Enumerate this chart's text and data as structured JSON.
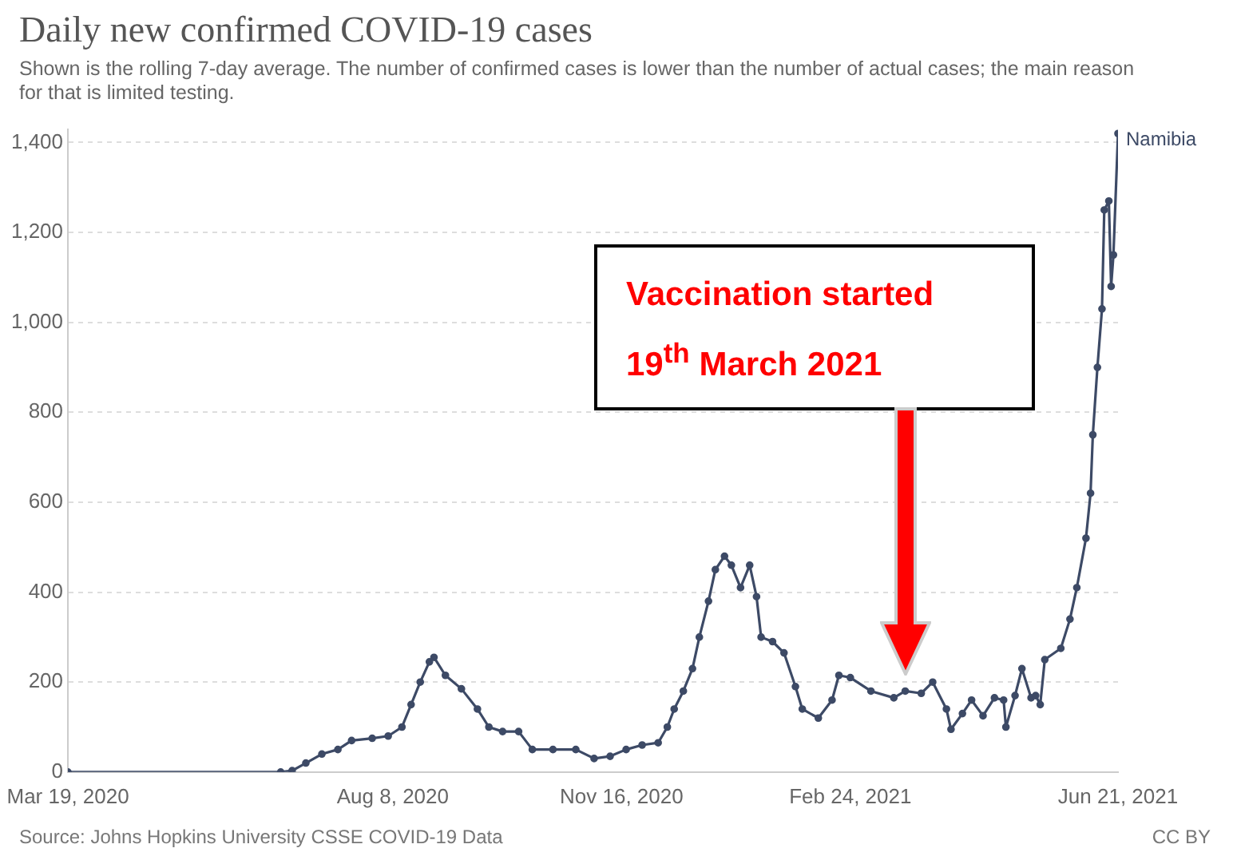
{
  "chart_data": {
    "type": "line",
    "title": "Daily new confirmed COVID-19 cases",
    "subtitle": "Shown is the rolling 7-day average. The number of confirmed cases is lower than the number of actual cases; the main reason for that is limited testing.",
    "annotations": [
      "Source: Johns Hopkins University CSSE COVID-19 Data",
      "CC BY",
      "Vaccination started 19$^{th}$ March 2021"
    ],
    "series": [
      {
        "name": "Namibia",
        "color": "#3d4a66",
        "x": [
          "2020-03-19",
          "2020-06-20",
          "2020-06-25",
          "2020-07-01",
          "2020-07-08",
          "2020-07-15",
          "2020-07-21",
          "2020-07-30",
          "2020-08-06",
          "2020-08-12",
          "2020-08-16",
          "2020-08-20",
          "2020-08-24",
          "2020-08-26",
          "2020-08-31",
          "2020-09-07",
          "2020-09-14",
          "2020-09-19",
          "2020-09-25",
          "2020-10-02",
          "2020-10-08",
          "2020-10-17",
          "2020-10-27",
          "2020-11-04",
          "2020-11-11",
          "2020-11-18",
          "2020-11-25",
          "2020-12-02",
          "2020-12-06",
          "2020-12-09",
          "2020-12-13",
          "2020-12-17",
          "2020-12-20",
          "2020-12-24",
          "2020-12-27",
          "2020-12-31",
          "2021-01-03",
          "2021-01-07",
          "2021-01-11",
          "2021-01-14",
          "2021-01-16",
          "2021-01-21",
          "2021-01-26",
          "2021-01-31",
          "2021-02-03",
          "2021-02-10",
          "2021-02-16",
          "2021-02-19",
          "2021-02-24",
          "2021-03-05",
          "2021-03-15",
          "2021-03-20",
          "2021-03-27",
          "2021-04-01",
          "2021-04-07",
          "2021-04-09",
          "2021-04-14",
          "2021-04-18",
          "2021-04-23",
          "2021-04-28",
          "2021-05-02",
          "2021-05-03",
          "2021-05-07",
          "2021-05-10",
          "2021-05-14",
          "2021-05-16",
          "2021-05-18",
          "2021-05-20",
          "2021-05-27",
          "2021-05-31",
          "2021-06-03",
          "2021-06-07",
          "2021-06-09",
          "2021-06-10",
          "2021-06-12",
          "2021-06-14",
          "2021-06-15",
          "2021-06-17",
          "2021-06-18",
          "2021-06-19",
          "2021-06-21"
        ],
        "values": [
          0,
          0,
          3,
          20,
          40,
          50,
          70,
          75,
          80,
          100,
          150,
          200,
          245,
          255,
          215,
          185,
          140,
          100,
          90,
          90,
          50,
          50,
          50,
          30,
          35,
          50,
          60,
          65,
          100,
          140,
          180,
          230,
          300,
          380,
          450,
          480,
          460,
          410,
          460,
          390,
          300,
          290,
          265,
          190,
          140,
          120,
          160,
          215,
          210,
          180,
          165,
          180,
          175,
          200,
          140,
          95,
          130,
          160,
          125,
          165,
          160,
          100,
          170,
          230,
          165,
          170,
          150,
          250,
          275,
          340,
          410,
          520,
          620,
          750,
          900,
          1030,
          1250,
          1270,
          1080,
          1150,
          1420
        ]
      }
    ],
    "xlim": [
      "2020-03-19",
      "2021-06-21"
    ],
    "xticks": [
      {
        "value": "2020-03-19",
        "label": "Mar 19, 2020"
      },
      {
        "value": "2020-08-08",
        "label": "Aug 8, 2020"
      },
      {
        "value": "2020-11-16",
        "label": "Nov 16, 2020"
      },
      {
        "value": "2021-02-24",
        "label": "Feb 24, 2021"
      },
      {
        "value": "2021-06-21",
        "label": "Jun 21, 2021"
      }
    ],
    "ylim": [
      0,
      1430
    ],
    "yticks": [
      {
        "value": 0,
        "label": "0"
      },
      {
        "value": 200,
        "label": "200"
      },
      {
        "value": 400,
        "label": "400"
      },
      {
        "value": 600,
        "label": "600"
      },
      {
        "value": 800,
        "label": "800"
      },
      {
        "value": 1000,
        "label": "1,000"
      },
      {
        "value": 1200,
        "label": "1,200"
      },
      {
        "value": 1400,
        "label": "1,400"
      }
    ],
    "grid": "y",
    "legend": false,
    "marker": "circle",
    "line_style": "solid"
  }
}
